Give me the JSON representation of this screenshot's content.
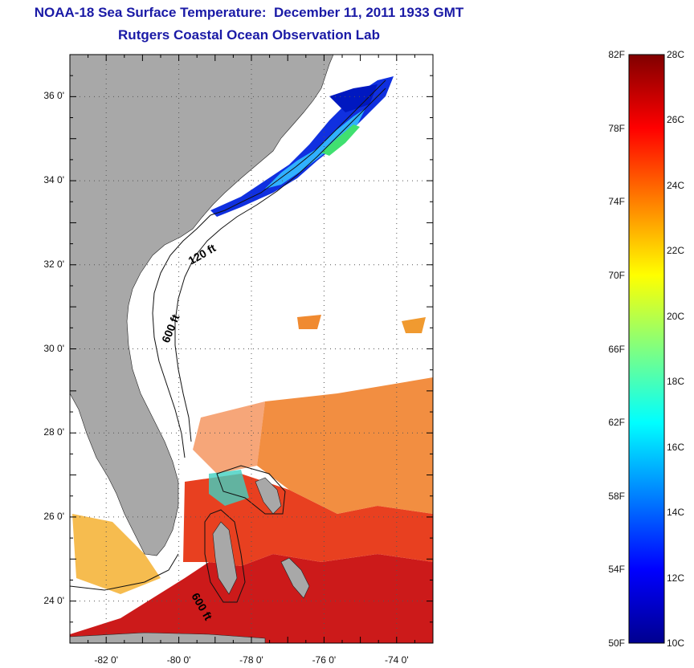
{
  "title": {
    "line1": "NOAA-18 Sea Surface Temperature:  December 11, 2011 1933 GMT",
    "line2": "Rutgers Coastal Ocean Observation Lab"
  },
  "map": {
    "y_ticks": [
      {
        "label": "36 0'",
        "lat": 36
      },
      {
        "label": "34 0'",
        "lat": 34
      },
      {
        "label": "32 0'",
        "lat": 32
      },
      {
        "label": "30 0'",
        "lat": 30
      },
      {
        "label": "28 0'",
        "lat": 28
      },
      {
        "label": "26 0'",
        "lat": 26
      },
      {
        "label": "24 0'",
        "lat": 24
      }
    ],
    "x_ticks": [
      {
        "label": "-82 0'",
        "lon": -82
      },
      {
        "label": "-80 0'",
        "lon": -80
      },
      {
        "label": "-78 0'",
        "lon": -78
      },
      {
        "label": "-76 0'",
        "lon": -76
      },
      {
        "label": "-74 0'",
        "lon": -74
      }
    ],
    "lon_range": [
      -83,
      -73
    ],
    "lat_range": [
      23,
      37
    ],
    "contour_labels": {
      "c120": "120 ft",
      "c600a": "600 ft",
      "c600b": "600 ft"
    },
    "colors": {
      "land": "#a8a8a8",
      "ocean": "#ffffff"
    }
  },
  "colorbar": {
    "f_labels": [
      "82F",
      "78F",
      "74F",
      "70F",
      "66F",
      "62F",
      "58F",
      "54F",
      "50F"
    ],
    "c_labels": [
      "28C",
      "26C",
      "24C",
      "22C",
      "20C",
      "18C",
      "16C",
      "14C",
      "12C",
      "10C"
    ],
    "colormap": [
      "#00008f",
      "#0000ff",
      "#0080ff",
      "#00ffff",
      "#80ff80",
      "#ffff00",
      "#ff8000",
      "#ff0000",
      "#800000"
    ],
    "range_C": [
      10,
      28
    ],
    "range_F": [
      50,
      82
    ]
  }
}
